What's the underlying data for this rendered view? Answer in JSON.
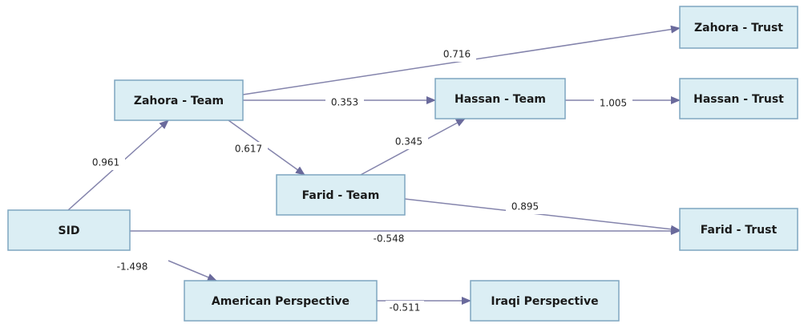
{
  "nodes": [
    {
      "label": "Zahora - Trust"
    },
    {
      "label": "Hassan - Trust"
    },
    {
      "label": "Farid - Trust"
    },
    {
      "label": "Zahora - Team"
    },
    {
      "label": "Hassan - Team"
    },
    {
      "label": "Farid - Team"
    },
    {
      "label": "SID"
    },
    {
      "label": "American Perspective"
    },
    {
      "label": "Iraqi Perspective"
    }
  ],
  "edges": [
    {
      "label": "0.716"
    },
    {
      "label": "0.353"
    },
    {
      "label": "1.005"
    },
    {
      "label": "0.617"
    },
    {
      "label": "0.345"
    },
    {
      "label": "0.961"
    },
    {
      "label": "0.895"
    },
    {
      "label": "-0.548"
    },
    {
      "label": "-1.498"
    },
    {
      "label": "-0.511"
    }
  ]
}
